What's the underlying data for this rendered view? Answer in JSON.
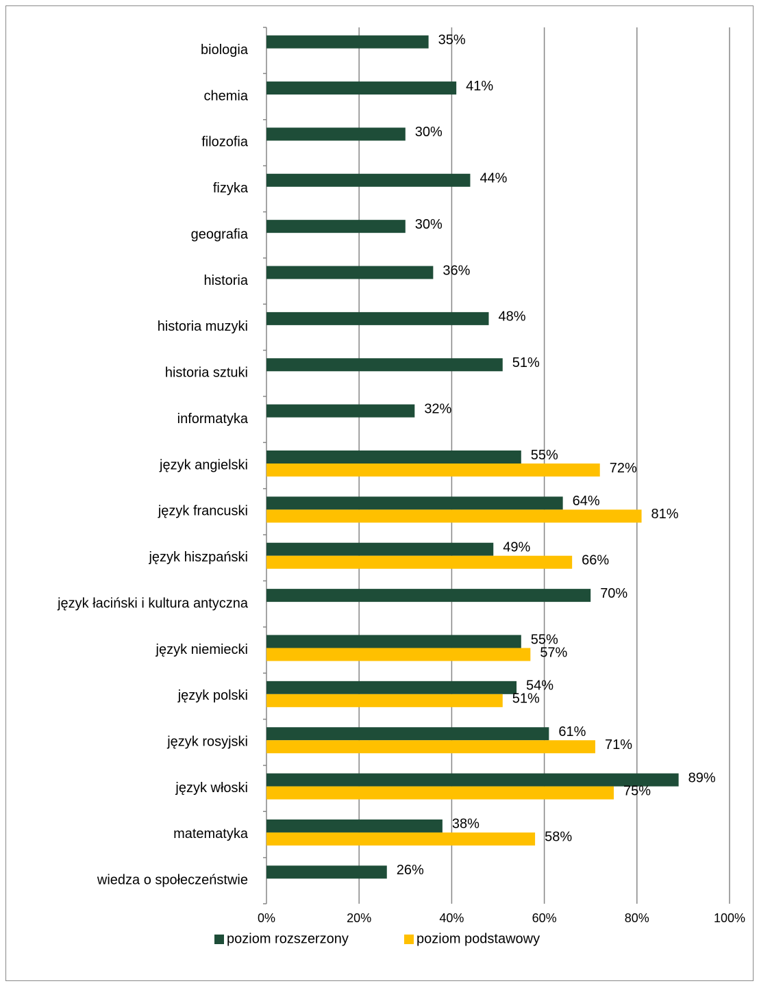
{
  "chart_data": {
    "type": "bar",
    "orientation": "horizontal",
    "categories": [
      "biologia",
      "chemia",
      "filozofia",
      "fizyka",
      "geografia",
      "historia",
      "historia muzyki",
      "historia sztuki",
      "informatyka",
      "język angielski",
      "język francuski",
      "język hiszpański",
      "język łaciński i kultura antyczna",
      "język niemiecki",
      "język polski",
      "język rosyjski",
      "język włoski",
      "matematyka",
      "wiedza o społeczeństwie"
    ],
    "series": [
      {
        "name": "poziom rozszerzony",
        "color": "#1e4d38",
        "values": [
          35,
          41,
          30,
          44,
          30,
          36,
          48,
          51,
          32,
          55,
          64,
          49,
          70,
          55,
          54,
          61,
          89,
          38,
          26
        ],
        "value_labels": [
          "35%",
          "41%",
          "30%",
          "44%",
          "30%",
          "36%",
          "48%",
          "51%",
          "32%",
          "55%",
          "64%",
          "49%",
          "70%",
          "55%",
          "54%",
          "61%",
          "89%",
          "38%",
          "26%"
        ]
      },
      {
        "name": "poziom podstawowy",
        "color": "#ffc000",
        "values": [
          null,
          null,
          null,
          null,
          null,
          null,
          null,
          null,
          null,
          72,
          81,
          66,
          null,
          57,
          51,
          71,
          75,
          58,
          null
        ],
        "value_labels": [
          null,
          null,
          null,
          null,
          null,
          null,
          null,
          null,
          null,
          "72%",
          "81%",
          "66%",
          null,
          "57%",
          "51%",
          "71%",
          "75%",
          "58%",
          null
        ]
      }
    ],
    "xlim": [
      0,
      100
    ],
    "xticks": [
      {
        "value": 0,
        "label": "0%"
      },
      {
        "value": 20,
        "label": "20%"
      },
      {
        "value": 40,
        "label": "40%"
      },
      {
        "value": 60,
        "label": "60%"
      },
      {
        "value": 80,
        "label": "80%"
      },
      {
        "value": 100,
        "label": "100%"
      }
    ],
    "grid": true,
    "legend": "bottom"
  }
}
